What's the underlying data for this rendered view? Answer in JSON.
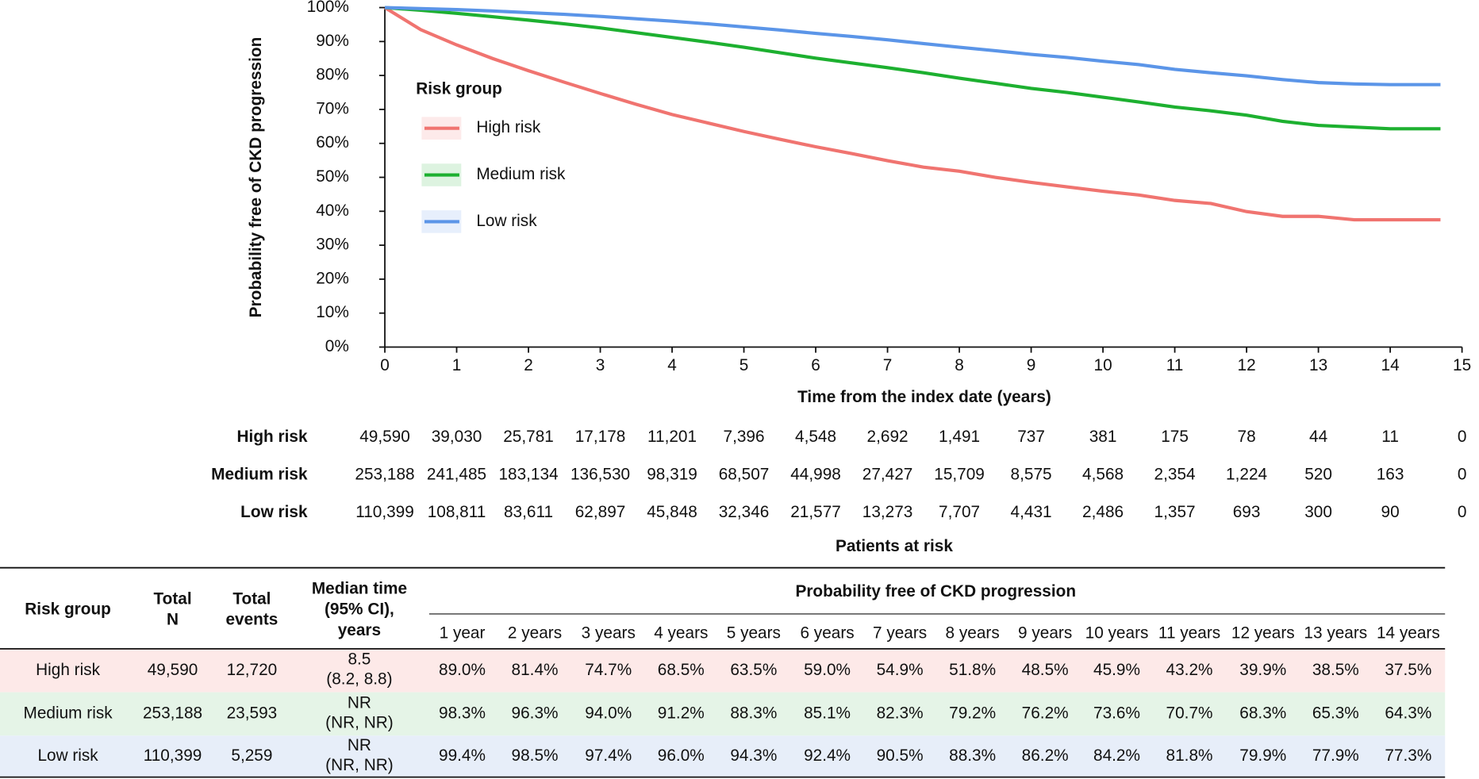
{
  "chart_data": {
    "type": "line",
    "x_label": "Time from the index date (years)",
    "y_label": "Probability free of CKD progression",
    "legend_title": "Risk group",
    "legend_position": "upper left",
    "x": [
      0,
      0.5,
      1,
      1.5,
      2,
      2.5,
      3,
      3.5,
      4,
      4.5,
      5,
      5.5,
      6,
      6.5,
      7,
      7.5,
      8,
      8.5,
      9,
      9.5,
      10,
      10.5,
      11,
      11.5,
      12,
      12.5,
      13,
      13.5,
      14,
      14.7
    ],
    "series": [
      {
        "name": "High risk",
        "color": "#f07470",
        "values": [
          100,
          93.5,
          89,
          85,
          81.4,
          78,
          74.7,
          71.5,
          68.5,
          66,
          63.5,
          61.2,
          59,
          57,
          54.9,
          53,
          51.8,
          50,
          48.5,
          47.2,
          45.9,
          44.8,
          43.2,
          42.3,
          39.9,
          38.5,
          38.5,
          37.5,
          37.5,
          37.5
        ]
      },
      {
        "name": "Medium risk",
        "color": "#1db030",
        "values": [
          100,
          99.2,
          98.3,
          97.3,
          96.3,
          95.2,
          94.0,
          92.6,
          91.2,
          89.8,
          88.3,
          86.7,
          85.1,
          83.7,
          82.3,
          80.8,
          79.2,
          77.7,
          76.2,
          75.0,
          73.6,
          72.2,
          70.7,
          69.6,
          68.3,
          66.5,
          65.3,
          64.8,
          64.3,
          64.3
        ]
      },
      {
        "name": "Low risk",
        "color": "#5b95e8",
        "values": [
          100,
          99.7,
          99.4,
          99.0,
          98.5,
          98.0,
          97.4,
          96.7,
          96.0,
          95.2,
          94.3,
          93.4,
          92.4,
          91.5,
          90.5,
          89.4,
          88.3,
          87.3,
          86.2,
          85.3,
          84.2,
          83.2,
          81.8,
          80.8,
          79.9,
          78.8,
          77.9,
          77.5,
          77.3,
          77.3
        ]
      }
    ],
    "xlim": [
      0,
      15
    ],
    "xticks": [
      0,
      1,
      2,
      3,
      4,
      5,
      6,
      7,
      8,
      9,
      10,
      11,
      12,
      13,
      14,
      15
    ],
    "ylim": [
      0,
      100
    ],
    "yticks": [
      {
        "value": 0,
        "label": "0%"
      },
      {
        "value": 10,
        "label": "10%"
      },
      {
        "value": 20,
        "label": "20%"
      },
      {
        "value": 30,
        "label": "30%"
      },
      {
        "value": 40,
        "label": "40%"
      },
      {
        "value": 50,
        "label": "50%"
      },
      {
        "value": 60,
        "label": "60%"
      },
      {
        "value": 70,
        "label": "70%"
      },
      {
        "value": 80,
        "label": "80%"
      },
      {
        "value": 90,
        "label": "90%"
      },
      {
        "value": 100,
        "label": "100%"
      }
    ],
    "grid": false
  },
  "risk_table": {
    "title": "Patients at risk",
    "rows": [
      {
        "name": "High risk",
        "counts": [
          "49,590",
          "39,030",
          "25,781",
          "17,178",
          "11,201",
          "7,396",
          "4,548",
          "2,692",
          "1,491",
          "737",
          "381",
          "175",
          "78",
          "44",
          "11",
          "0"
        ]
      },
      {
        "name": "Medium risk",
        "counts": [
          "253,188",
          "241,485",
          "183,134",
          "136,530",
          "98,319",
          "68,507",
          "44,998",
          "27,427",
          "15,709",
          "8,575",
          "4,568",
          "2,354",
          "1,224",
          "520",
          "163",
          "0"
        ]
      },
      {
        "name": "Low risk",
        "counts": [
          "110,399",
          "108,811",
          "83,611",
          "62,897",
          "45,848",
          "32,346",
          "21,577",
          "13,273",
          "7,707",
          "4,431",
          "2,486",
          "1,357",
          "693",
          "300",
          "90",
          "0"
        ]
      }
    ]
  },
  "summary_table": {
    "columns": [
      [
        "Risk group"
      ],
      [
        "Total",
        "N"
      ],
      [
        "Total",
        "events"
      ],
      [
        "Median time",
        "(95% CI),",
        "years"
      ]
    ],
    "group_header": "Probability free of CKD progression",
    "year_columns": [
      "1 year",
      "2 years",
      "3 years",
      "4 years",
      "5 years",
      "6 years",
      "7 years",
      "8 years",
      "9 years",
      "10 years",
      "11 years",
      "12 years",
      "13 years",
      "14 years"
    ],
    "rows": [
      {
        "group": "High risk",
        "total_n": "49,590",
        "total_events": "12,720",
        "median": [
          "8.5",
          "(8.2, 8.8)"
        ],
        "probabilities": [
          "89.0%",
          "81.4%",
          "74.7%",
          "68.5%",
          "63.5%",
          "59.0%",
          "54.9%",
          "51.8%",
          "48.5%",
          "45.9%",
          "43.2%",
          "39.9%",
          "38.5%",
          "37.5%"
        ]
      },
      {
        "group": "Medium risk",
        "total_n": "253,188",
        "total_events": "23,593",
        "median": [
          "NR",
          "(NR, NR)"
        ],
        "probabilities": [
          "98.3%",
          "96.3%",
          "94.0%",
          "91.2%",
          "88.3%",
          "85.1%",
          "82.3%",
          "79.2%",
          "76.2%",
          "73.6%",
          "70.7%",
          "68.3%",
          "65.3%",
          "64.3%"
        ]
      },
      {
        "group": "Low risk",
        "total_n": "110,399",
        "total_events": "5,259",
        "median": [
          "NR",
          "(NR, NR)"
        ],
        "probabilities": [
          "99.4%",
          "98.5%",
          "97.4%",
          "96.0%",
          "94.3%",
          "92.4%",
          "90.5%",
          "88.3%",
          "86.2%",
          "84.2%",
          "81.8%",
          "79.9%",
          "77.9%",
          "77.3%"
        ]
      }
    ]
  }
}
